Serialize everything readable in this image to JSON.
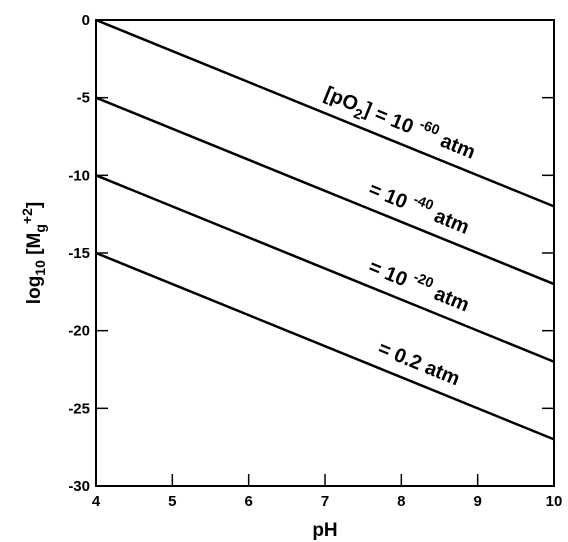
{
  "chart_data": {
    "type": "line",
    "xlabel": "pH",
    "ylabel": {
      "base": "log",
      "base_sub": "10",
      "open": " [M",
      "sub": "g",
      "sup": "+2",
      "close": "]"
    },
    "xlim": [
      4,
      10
    ],
    "ylim": [
      -30,
      0
    ],
    "xticks": [
      4,
      5,
      6,
      7,
      8,
      9,
      10
    ],
    "yticks": [
      0,
      -5,
      -10,
      -15,
      -20,
      -25,
      -30
    ],
    "grid": false,
    "series": [
      {
        "label": {
          "prefix": "[pO",
          "sub": "2",
          "close": "]",
          "eq": " = 10 ",
          "sup": "-60",
          "unit": " atm"
        },
        "points": [
          [
            4,
            0
          ],
          [
            10,
            -12
          ]
        ]
      },
      {
        "label": {
          "prefix": "",
          "sub": "",
          "close": "",
          "eq": "= 10 ",
          "sup": "-40",
          "unit": " atm"
        },
        "points": [
          [
            4,
            -5
          ],
          [
            10,
            -17
          ]
        ]
      },
      {
        "label": {
          "prefix": "",
          "sub": "",
          "close": "",
          "eq": "= 10 ",
          "sup": "-20",
          "unit": " atm"
        },
        "points": [
          [
            4,
            -10
          ],
          [
            10,
            -22
          ]
        ]
      },
      {
        "label": {
          "prefix": "",
          "sub": "",
          "close": "",
          "eq": "= 0.2 atm",
          "sup": "",
          "unit": ""
        },
        "points": [
          [
            4,
            -15
          ],
          [
            10,
            -27
          ]
        ]
      }
    ]
  }
}
